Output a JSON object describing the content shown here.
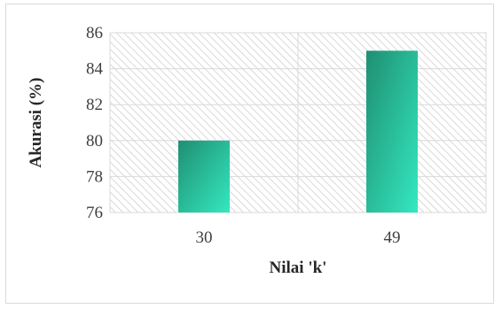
{
  "chart_data": {
    "type": "bar",
    "categories": [
      "30",
      "49"
    ],
    "values": [
      80,
      85
    ],
    "xlabel": "Nilai 'k'",
    "ylabel": "Akurasi (%)",
    "ylim": [
      76,
      86
    ],
    "yticks": [
      76,
      78,
      80,
      82,
      84,
      86
    ],
    "grid": true,
    "legend": "none",
    "plot_fill": "diagonal hatch",
    "colors": {
      "bar_dark": "#1f8f72",
      "bar_light": "#34e8c0",
      "grid": "#d9d9d9",
      "hatch": "#d9d9d9"
    }
  }
}
